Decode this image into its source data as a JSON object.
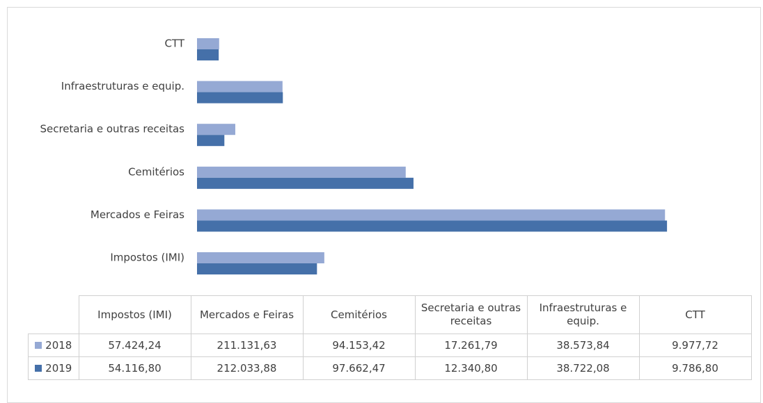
{
  "chart_data": {
    "type": "bar",
    "orientation": "horizontal",
    "categories": [
      "Impostos (IMI)",
      "Mercados e Feiras",
      "Cemitérios",
      "Secretaria e outras receitas",
      "Infraestruturas e equip.",
      "CTT"
    ],
    "series": [
      {
        "name": "2018",
        "color": "#95a9d4",
        "values": [
          57424.24,
          211131.63,
          94153.42,
          17261.79,
          38573.84,
          9977.72
        ],
        "value_labels": [
          "57.424,24",
          "211.131,63",
          "94.153,42",
          "17.261,79",
          "38.573,84",
          "9.977,72"
        ]
      },
      {
        "name": "2019",
        "color": "#4570a9",
        "values": [
          54116.8,
          212033.88,
          97662.47,
          12340.8,
          38722.08,
          9786.8
        ],
        "value_labels": [
          "54.116,80",
          "212.033,88",
          "97.662,47",
          "12.340,80",
          "38.722,08",
          "9.786,80"
        ]
      }
    ],
    "xlim": [
      0,
      250000
    ]
  }
}
